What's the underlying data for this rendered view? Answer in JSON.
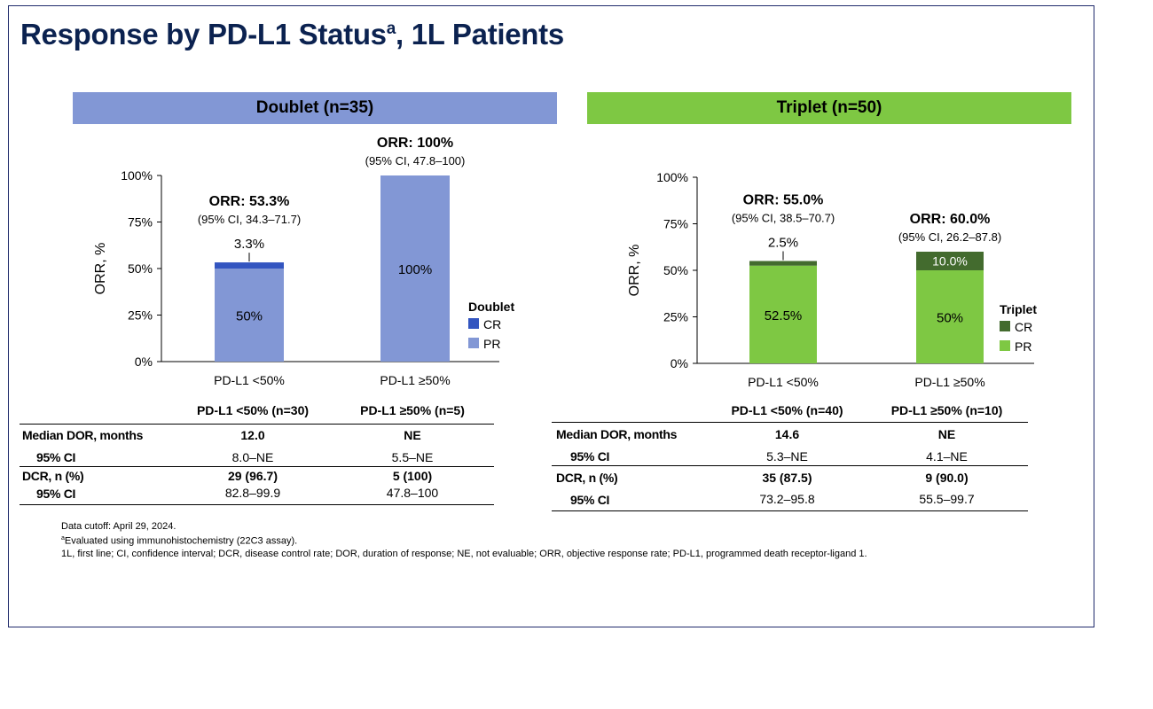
{
  "title": {
    "main": "Response by PD-L1 Status",
    "sup": "a",
    "tail": ", 1L Patients"
  },
  "banners": {
    "doublet": "Doublet (n=35)",
    "triplet": "Triplet (n=50)"
  },
  "colors": {
    "doublet_cr": "#3355c0",
    "doublet_pr": "#8297d5",
    "triplet_cr": "#436b2e",
    "triplet_pr": "#7ec843"
  },
  "chart_data": [
    {
      "type": "bar",
      "stacked": true,
      "ylabel": "ORR, %",
      "ylim": [
        0,
        100
      ],
      "yticks": [
        "0%",
        "25%",
        "50%",
        "75%",
        "100%"
      ],
      "categories": [
        "PD-L1 <50%",
        "PD-L1 ≥50%"
      ],
      "series": [
        {
          "name": "PR",
          "values": [
            50,
            100
          ],
          "labels": [
            "50%",
            "100%"
          ]
        },
        {
          "name": "CR",
          "values": [
            3.3,
            0
          ],
          "labels": [
            "3.3%",
            ""
          ]
        }
      ],
      "orr_labels": [
        "ORR: 53.3%",
        "ORR: 100%"
      ],
      "ci_labels": [
        "(95% CI, 34.3–71.7)",
        "(95% CI, 47.8–100)"
      ],
      "legend_title": "Doublet",
      "legend_placement": "right"
    },
    {
      "type": "bar",
      "stacked": true,
      "ylabel": "ORR, %",
      "ylim": [
        0,
        100
      ],
      "yticks": [
        "0%",
        "25%",
        "50%",
        "75%",
        "100%"
      ],
      "categories": [
        "PD-L1 <50%",
        "PD-L1 ≥50%"
      ],
      "series": [
        {
          "name": "PR",
          "values": [
            52.5,
            50
          ],
          "labels": [
            "52.5%",
            "50%"
          ]
        },
        {
          "name": "CR",
          "values": [
            2.5,
            10
          ],
          "labels": [
            "2.5%",
            "10.0%"
          ]
        }
      ],
      "orr_labels": [
        "ORR: 55.0%",
        "ORR: 60.0%"
      ],
      "ci_labels": [
        "(95% CI, 38.5–70.7)",
        "(95% CI, 26.2–87.8)"
      ],
      "legend_title": "Triplet",
      "legend_placement": "right"
    }
  ],
  "tables": {
    "doublet": {
      "headers": [
        "PD-L1 <50% (n=30)",
        "PD-L1 ≥50% (n=5)"
      ],
      "rows": [
        {
          "label": "Median DOR, months",
          "values": [
            "12.0",
            "NE"
          ]
        },
        {
          "label": "95% CI",
          "values": [
            "8.0–NE",
            "5.5–NE"
          ]
        },
        {
          "label": "DCR, n (%)",
          "values": [
            "29 (96.7)",
            "5 (100)"
          ]
        },
        {
          "label": "95% CI",
          "values": [
            "82.8–99.9",
            "47.8–100"
          ]
        }
      ]
    },
    "triplet": {
      "headers": [
        "PD-L1 <50% (n=40)",
        "PD-L1 ≥50% (n=10)"
      ],
      "rows": [
        {
          "label": "Median DOR, months",
          "values": [
            "14.6",
            "NE"
          ]
        },
        {
          "label": "95% CI",
          "values": [
            "5.3–NE",
            "4.1–NE"
          ]
        },
        {
          "label": "DCR, n (%)",
          "values": [
            "35 (87.5)",
            "9 (90.0)"
          ]
        },
        {
          "label": "95% CI",
          "values": [
            "73.2–95.8",
            "55.5–99.7"
          ]
        }
      ]
    }
  },
  "footnotes": {
    "cutoff": "Data cutoff: April 29, 2024.",
    "a_sup": "a",
    "a_text": "Evaluated using immunohistochemistry (22C3 assay).",
    "abbrev": "1L, first line; CI, confidence interval; DCR, disease control rate; DOR, duration of response; NE, not evaluable; ORR, objective response rate; PD-L1, programmed death receptor-ligand 1."
  }
}
